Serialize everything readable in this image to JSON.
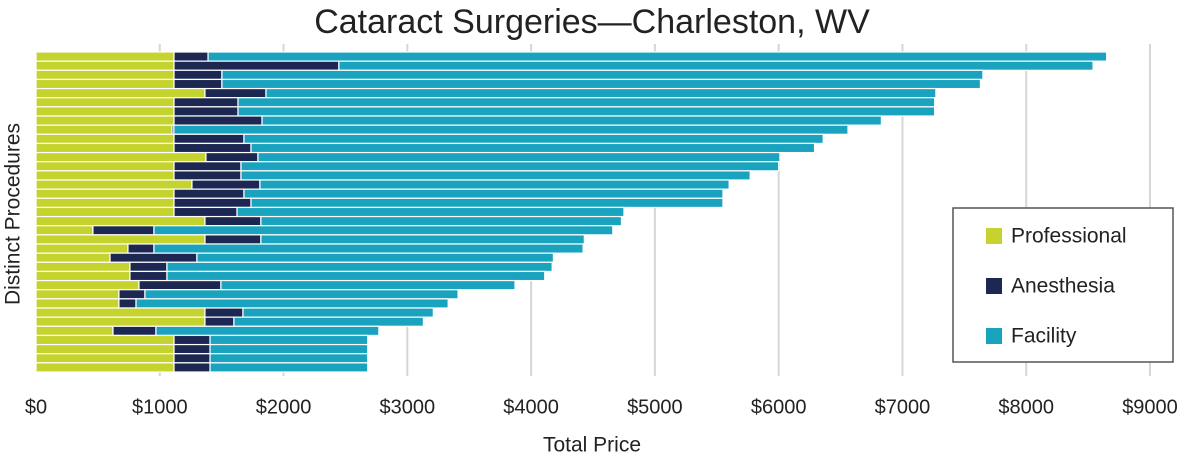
{
  "chart_data": {
    "type": "stacked_barh",
    "title": "Cataract Surgeries—Charleston, WV",
    "x_label": "Total Price",
    "y_label": "Distinct Procedures",
    "categories": [
      null,
      null,
      null,
      null,
      null,
      null,
      null,
      null,
      null,
      null,
      null,
      null,
      null,
      null,
      null,
      null,
      null,
      null,
      null,
      null,
      null,
      null,
      null,
      null,
      null,
      null,
      null,
      null,
      null,
      null,
      null,
      null,
      null,
      null,
      null
    ],
    "series": [
      {
        "name": "Professional",
        "color": "#c5d32e",
        "values": [
          1115,
          1115,
          1115,
          1115,
          1365,
          1115,
          1115,
          1115,
          1099,
          1115,
          1115,
          1373,
          1115,
          1115,
          1260,
          1115,
          1115,
          1115,
          1365,
          460,
          1365,
          743,
          598,
          759,
          759,
          832,
          670,
          670,
          1365,
          1365,
          622,
          1115,
          1115,
          1115,
          1115
        ]
      },
      {
        "name": "Anesthesia",
        "color": "#1c2752",
        "values": [
          275,
          1332,
          387,
          387,
          493,
          517,
          517,
          711,
          15,
          565,
          622,
          420,
          541,
          541,
          549,
          565,
          622,
          509,
          452,
          493,
          452,
          210,
          702,
          299,
          299,
          662,
          210,
          138,
          307,
          234,
          347,
          291,
          291,
          291,
          291
        ]
      },
      {
        "name": "Facility",
        "color": "#1aa3bf",
        "values": [
          7260,
          6093,
          6148,
          6128,
          5412,
          5628,
          5628,
          5004,
          5446,
          4680,
          4553,
          4217,
          4344,
          4114,
          3791,
          3870,
          3813,
          3126,
          2913,
          3707,
          2613,
          3467,
          2880,
          3112,
          3052,
          2376,
          2530,
          2522,
          1538,
          1531,
          1801,
          1274,
          1274,
          1274,
          1274
        ]
      }
    ],
    "xlim": [
      0,
      9000
    ],
    "xticks": [
      {
        "value": 0,
        "label": "$0"
      },
      {
        "value": 1000,
        "label": "$1000"
      },
      {
        "value": 2000,
        "label": "$2000"
      },
      {
        "value": 3000,
        "label": "$3000"
      },
      {
        "value": 4000,
        "label": "$4000"
      },
      {
        "value": 5000,
        "label": "$5000"
      },
      {
        "value": 6000,
        "label": "$6000"
      },
      {
        "value": 7000,
        "label": "$7000"
      },
      {
        "value": 8000,
        "label": "$8000"
      },
      {
        "value": 9000,
        "label": "$9000"
      }
    ],
    "grid": true,
    "legend": "right"
  }
}
